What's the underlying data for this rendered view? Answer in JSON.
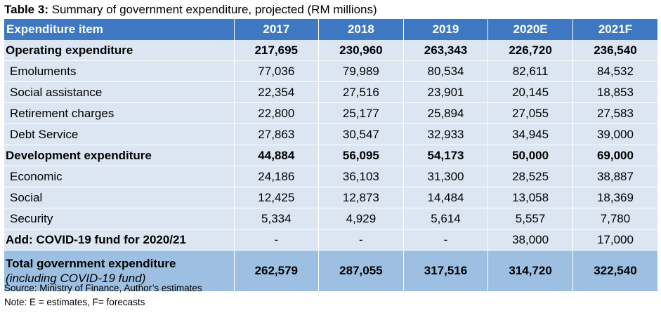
{
  "caption": {
    "label": "Table 3:",
    "text": " Summary of government expenditure, projected (RM millions)"
  },
  "table": {
    "headers": [
      "Expenditure  item",
      "2017",
      "2018",
      "2019",
      "2020E",
      "2021F"
    ],
    "rows": [
      {
        "label": "Operating expenditure",
        "values": [
          "217,695",
          "230,960",
          "263,343",
          "226,720",
          "236,540"
        ]
      },
      {
        "label": "Emoluments",
        "values": [
          "77,036",
          "79,989",
          "80,534",
          "82,611",
          "84,532"
        ]
      },
      {
        "label": "Social assistance",
        "values": [
          "22,354",
          "27,516",
          "23,901",
          "20,145",
          "18,853"
        ]
      },
      {
        "label": "Retirement charges",
        "values": [
          "22,800",
          "25,177",
          "25,894",
          "27,055",
          "27,583"
        ]
      },
      {
        "label": "Debt Service",
        "values": [
          "27,863",
          "30,547",
          "32,933",
          "34,945",
          "39,000"
        ]
      },
      {
        "label": "Development expenditure",
        "values": [
          "44,884",
          "56,095",
          "54,173",
          "50,000",
          "69,000"
        ]
      },
      {
        "label": "Economic",
        "values": [
          "24,186",
          "36,103",
          "31,300",
          "28,525",
          "38,887"
        ]
      },
      {
        "label": "Social",
        "values": [
          "12,425",
          "12,873",
          "14,484",
          "13,058",
          "18,369"
        ]
      },
      {
        "label": "Security",
        "values": [
          "5,334",
          "4,929",
          "5,614",
          "5,557",
          "7,780"
        ]
      },
      {
        "label": "Add: COVID-19 fund for 2020/21",
        "values": [
          "-",
          "-",
          "-",
          "38,000",
          "17,000"
        ]
      }
    ],
    "total": {
      "label": "Total government expenditure",
      "sublabel": "(including COVID-19 fund)",
      "values": [
        "262,579",
        "287,055",
        "317,516",
        "314,720",
        "322,540"
      ]
    }
  },
  "notes": {
    "source": "Source: Ministry of Finance, Author’s estimates",
    "note": "Note: E = estimates, F= forecasts"
  },
  "colors": {
    "header_bg": "#3f78c2",
    "row_bg": "#dce6f2",
    "total_bg": "#9dc0e2"
  }
}
